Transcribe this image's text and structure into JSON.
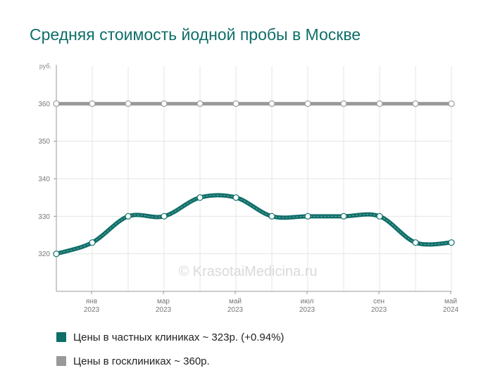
{
  "chart_data": {
    "type": "line",
    "title": "Средняя стоимость йодной пробы в Москве",
    "ylabel": "руб.",
    "ylim": [
      310,
      370
    ],
    "yticks": [
      320,
      330,
      340,
      350,
      360
    ],
    "x_month_labels": [
      "",
      "янв",
      "",
      "мар",
      "",
      "май",
      "",
      "июл",
      "",
      "сен",
      "",
      "май"
    ],
    "x_year_labels": [
      "",
      "2023",
      "",
      "2023",
      "",
      "2023",
      "",
      "2023",
      "",
      "2023",
      "",
      "2024"
    ],
    "series": [
      {
        "name": "Цены в частных клиниках ~ 323р. (+0.94%)",
        "color": "#0e6e68",
        "values": [
          320,
          323,
          330,
          330,
          335,
          335,
          330,
          330,
          330,
          330,
          323,
          323
        ]
      },
      {
        "name": "Цены в госклиниках ~ 360р.",
        "color": "#999999",
        "values": [
          360,
          360,
          360,
          360,
          360,
          360,
          360,
          360,
          360,
          360,
          360,
          360
        ]
      }
    ],
    "watermark": "© KrasotaiMedicina.ru"
  }
}
